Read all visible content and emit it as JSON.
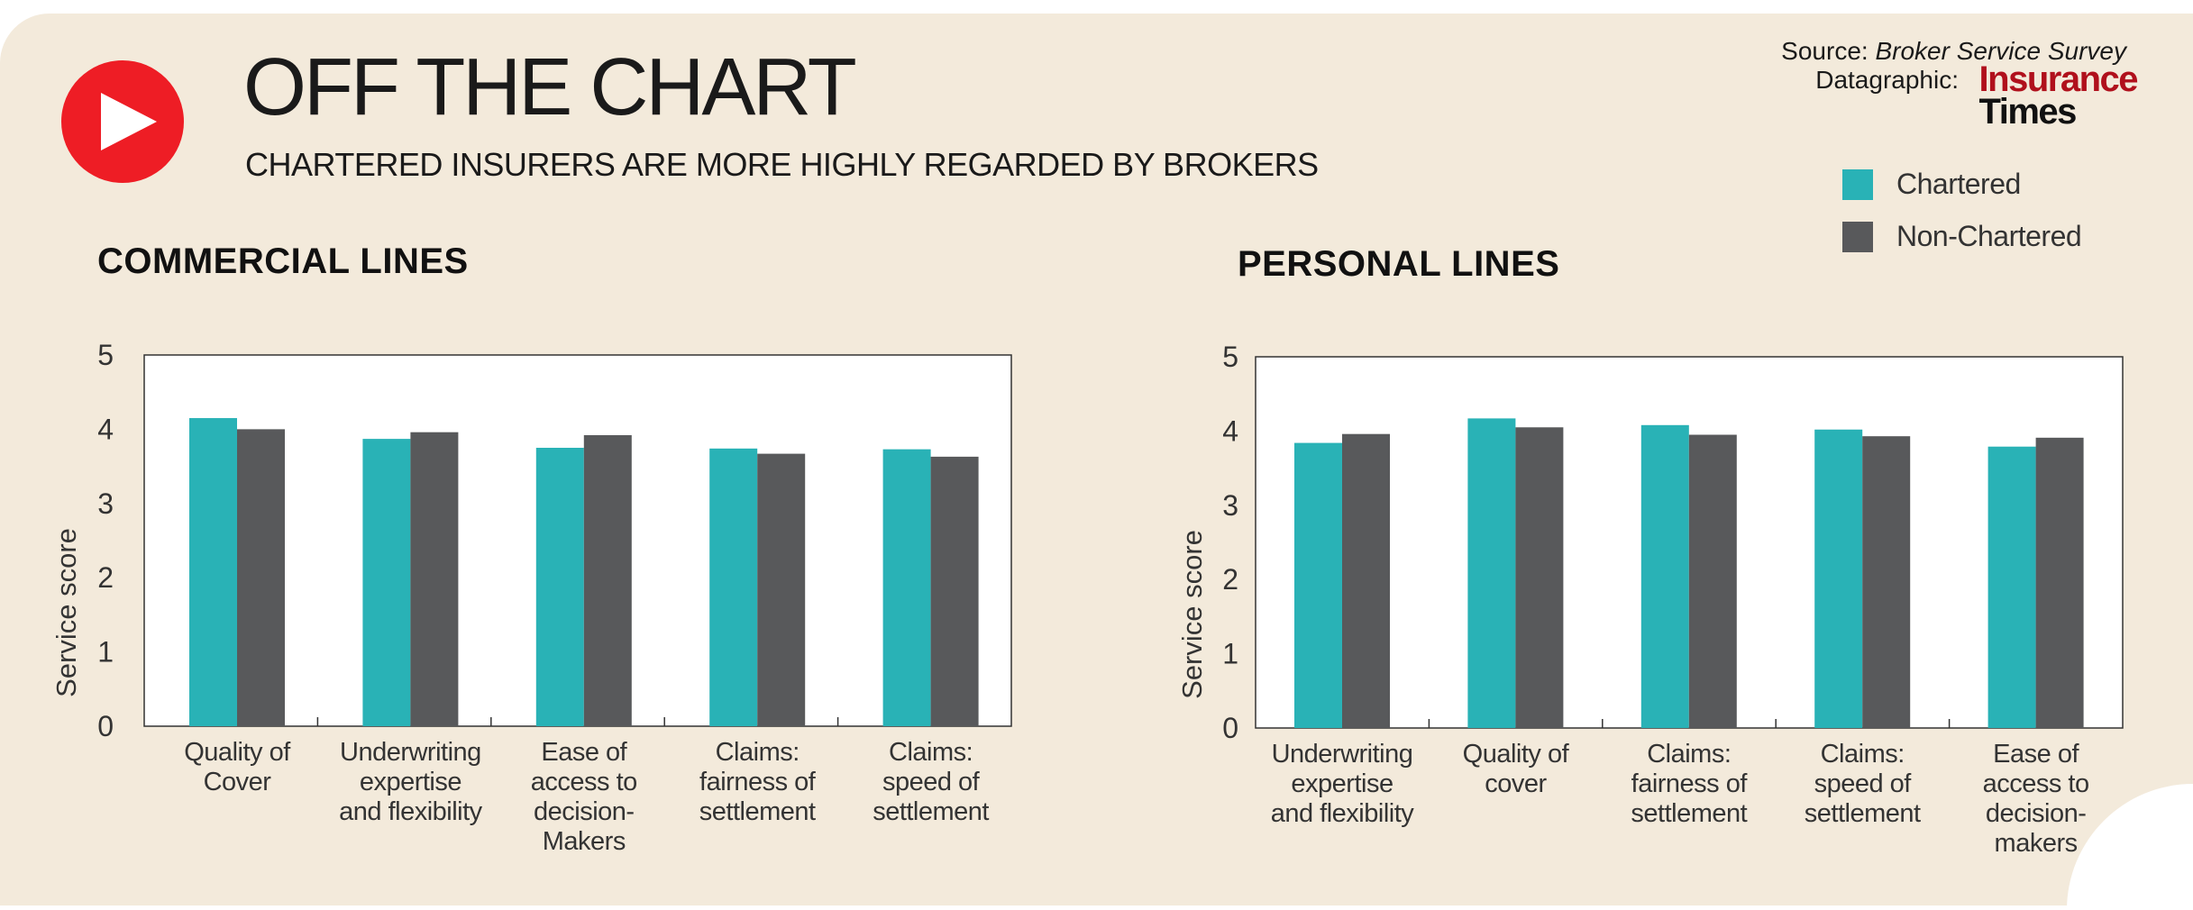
{
  "header": {
    "title": "OFF THE CHART",
    "subtitle": "CHARTERED INSURERS ARE MORE HIGHLY REGARDED BY BROKERS",
    "source_label": "Source: ",
    "source_name": "Broker Service Survey",
    "datagraphic_label": "Datagraphic:",
    "brand_line1": "Insurance",
    "brand_line2": "Times"
  },
  "colors": {
    "chartered": "#29b2b6",
    "non_chartered": "#58595b",
    "play": "#ee1d25",
    "background": "#f3eadb"
  },
  "legend": [
    {
      "label": "Chartered",
      "color": "#29b2b6"
    },
    {
      "label": "Non-Chartered",
      "color": "#58595b"
    }
  ],
  "chart_data": [
    {
      "type": "bar",
      "title": "COMMERCIAL LINES",
      "ylabel": "Service score",
      "ylim": [
        0,
        5
      ],
      "yticks": [
        "0",
        "1",
        "2",
        "3",
        "4",
        "5"
      ],
      "categories": [
        [
          "Quality of",
          "Cover"
        ],
        [
          "Underwriting",
          "expertise",
          "and flexibility"
        ],
        [
          "Ease of",
          "access to",
          "decision-",
          "Makers"
        ],
        [
          "Claims:",
          "fairness of",
          "settlement"
        ],
        [
          "Claims:",
          "speed of",
          "settlement"
        ]
      ],
      "series": [
        {
          "name": "Chartered",
          "values": [
            4.15,
            3.87,
            3.75,
            3.74,
            3.73
          ]
        },
        {
          "name": "Non-Chartered",
          "values": [
            4.0,
            3.96,
            3.92,
            3.67,
            3.63
          ]
        }
      ]
    },
    {
      "type": "bar",
      "title": "PERSONAL LINES",
      "ylabel": "Service score",
      "ylim": [
        0,
        5
      ],
      "yticks": [
        "0",
        "1",
        "2",
        "3",
        "4",
        "5"
      ],
      "categories": [
        [
          "Underwriting",
          "expertise",
          "and flexibility"
        ],
        [
          "Quality of",
          "cover"
        ],
        [
          "Claims:",
          "fairness of",
          "settlement"
        ],
        [
          "Claims:",
          "speed of",
          "settlement"
        ],
        [
          "Ease of",
          "access to",
          "decision-",
          "makers"
        ]
      ],
      "series": [
        {
          "name": "Chartered",
          "values": [
            3.84,
            4.17,
            4.08,
            4.02,
            3.79
          ]
        },
        {
          "name": "Non-Chartered",
          "values": [
            3.96,
            4.05,
            3.95,
            3.93,
            3.91
          ]
        }
      ]
    }
  ]
}
